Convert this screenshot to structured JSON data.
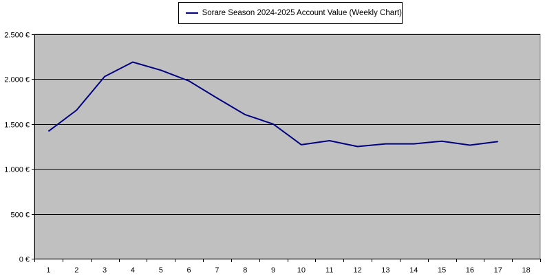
{
  "chart_data": {
    "type": "line",
    "title": "",
    "xlabel": "",
    "ylabel": "",
    "x": [
      1,
      2,
      3,
      4,
      5,
      6,
      7,
      8,
      9,
      10,
      11,
      12,
      13,
      14,
      15,
      16,
      17
    ],
    "categories": [
      "1",
      "2",
      "3",
      "4",
      "5",
      "6",
      "7",
      "8",
      "9",
      "10",
      "11",
      "12",
      "13",
      "14",
      "15",
      "16",
      "17",
      "18"
    ],
    "series": [
      {
        "name": "Sorare Season 2024-2025 Account Value (Weekly Chart)",
        "color": "#000080",
        "values": [
          1420,
          1655,
          2030,
          2190,
          2100,
          1980,
          1790,
          1605,
          1500,
          1270,
          1315,
          1250,
          1280,
          1280,
          1310,
          1265,
          1305
        ]
      }
    ],
    "ylim": [
      0,
      2500
    ],
    "y_ticks": [
      0,
      500,
      1000,
      1500,
      2000,
      2500
    ],
    "y_tick_labels": [
      "0 €",
      "500 €",
      "1.000 €",
      "1.500 €",
      "2.000 €",
      "2.500 €"
    ],
    "grid": "horizontal",
    "legend_position": "top-center",
    "colors": {
      "plot_background": "#c0c0c0",
      "line": "#000080",
      "grid": "#000000"
    }
  }
}
